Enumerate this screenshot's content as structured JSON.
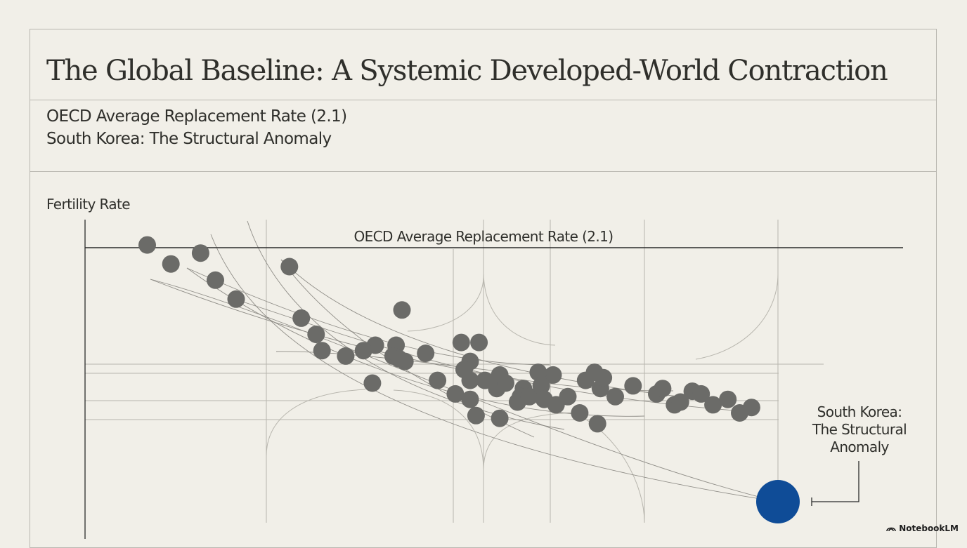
{
  "title": "The Global Baseline: A Systemic Developed-World Contraction",
  "subtitle_lines": [
    "OECD Average Replacement Rate (2.1)",
    "South Korea: The Structural Anomaly"
  ],
  "brand": "NotebookLM",
  "colors": {
    "background": "#f1efe8",
    "point": "#6b6b68",
    "highlight": "#0f4c97",
    "line": "#2b2b2b"
  },
  "chart_data": {
    "type": "scatter",
    "ylabel": "Fertility Rate",
    "xlabel": "",
    "grid": true,
    "reference_line": {
      "label": "OECD Average Replacement Rate (2.1)",
      "value": 2.1
    },
    "series": [
      {
        "points": [
          [
            0.51,
            2.11
          ],
          [
            0.59,
            2.04
          ],
          [
            0.69,
            2.08
          ],
          [
            0.74,
            1.98
          ],
          [
            0.81,
            1.91
          ],
          [
            0.99,
            2.03
          ],
          [
            1.03,
            1.84
          ],
          [
            1.08,
            1.78
          ],
          [
            1.1,
            1.72
          ],
          [
            1.18,
            1.7
          ],
          [
            1.37,
            1.87
          ],
          [
            1.38,
            1.68
          ],
          [
            1.28,
            1.74
          ],
          [
            1.35,
            1.74
          ],
          [
            1.34,
            1.7
          ],
          [
            1.24,
            1.72
          ],
          [
            1.27,
            1.6
          ],
          [
            1.36,
            1.69
          ],
          [
            1.45,
            1.71
          ],
          [
            1.57,
            1.75
          ],
          [
            1.63,
            1.75
          ],
          [
            1.6,
            1.68
          ],
          [
            1.58,
            1.65
          ],
          [
            1.65,
            1.61
          ],
          [
            1.7,
            1.63
          ],
          [
            1.49,
            1.61
          ],
          [
            1.55,
            1.56
          ],
          [
            1.6,
            1.61
          ],
          [
            1.69,
            1.58
          ],
          [
            1.6,
            1.54
          ],
          [
            1.72,
            1.6
          ],
          [
            1.78,
            1.58
          ],
          [
            1.77,
            1.55
          ],
          [
            1.76,
            1.53
          ],
          [
            1.8,
            1.55
          ],
          [
            1.88,
            1.63
          ],
          [
            1.83,
            1.64
          ],
          [
            1.84,
            1.59
          ],
          [
            1.85,
            1.54
          ],
          [
            1.89,
            1.52
          ],
          [
            1.93,
            1.55
          ],
          [
            1.99,
            1.61
          ],
          [
            2.02,
            1.64
          ],
          [
            2.04,
            1.58
          ],
          [
            2.05,
            1.62
          ],
          [
            2.09,
            1.55
          ],
          [
            2.15,
            1.59
          ],
          [
            2.23,
            1.56
          ],
          [
            2.25,
            1.58
          ],
          [
            2.29,
            1.52
          ],
          [
            2.31,
            1.53
          ],
          [
            2.35,
            1.57
          ],
          [
            2.38,
            1.56
          ],
          [
            2.42,
            1.52
          ],
          [
            2.47,
            1.54
          ],
          [
            2.51,
            1.49
          ],
          [
            2.55,
            1.51
          ],
          [
            1.62,
            1.48
          ],
          [
            1.7,
            1.47
          ],
          [
            1.97,
            1.49
          ],
          [
            2.03,
            1.45
          ]
        ]
      }
    ],
    "highlight": {
      "label": "South Korea: The Structural Anomaly",
      "callout_lines": [
        "South Korea:",
        "The Structural",
        "Anomaly"
      ]
    }
  }
}
